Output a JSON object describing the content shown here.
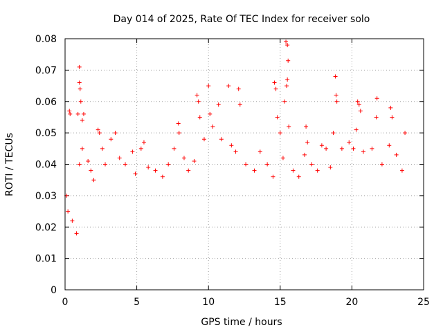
{
  "chart_data": {
    "type": "scatter",
    "title": "Day 014 of 2025, Rate Of TEC Index for receiver solo",
    "xlabel": "GPS time / hours",
    "ylabel": "ROTI / TECUs",
    "xlim": [
      0,
      25
    ],
    "ylim": [
      0,
      0.08
    ],
    "x_ticks": [
      0,
      5,
      10,
      15,
      20,
      25
    ],
    "x_tick_labels": [
      "0",
      "5",
      "10",
      "15",
      "20",
      "25"
    ],
    "y_ticks": [
      0,
      0.01,
      0.02,
      0.03,
      0.04,
      0.05,
      0.06,
      0.07,
      0.08
    ],
    "y_tick_labels": [
      "0",
      "0.01",
      "0.02",
      "0.03",
      "0.04",
      "0.05",
      "0.06",
      "0.07",
      "0.08"
    ],
    "grid": true,
    "marker": "+",
    "color": "#ff0000",
    "series": [
      {
        "name": "ROTI",
        "points": [
          [
            0.1,
            0.03
          ],
          [
            0.2,
            0.025
          ],
          [
            0.3,
            0.057
          ],
          [
            0.35,
            0.056
          ],
          [
            0.5,
            0.022
          ],
          [
            0.8,
            0.018
          ],
          [
            0.9,
            0.056
          ],
          [
            1.0,
            0.071
          ],
          [
            1.0,
            0.066
          ],
          [
            1.05,
            0.064
          ],
          [
            1.1,
            0.06
          ],
          [
            1.2,
            0.054
          ],
          [
            1.3,
            0.056
          ],
          [
            1.2,
            0.045
          ],
          [
            1.0,
            0.04
          ],
          [
            1.6,
            0.041
          ],
          [
            1.8,
            0.038
          ],
          [
            2.0,
            0.035
          ],
          [
            2.3,
            0.051
          ],
          [
            2.4,
            0.05
          ],
          [
            2.6,
            0.045
          ],
          [
            2.8,
            0.04
          ],
          [
            3.2,
            0.048
          ],
          [
            3.5,
            0.05
          ],
          [
            3.8,
            0.042
          ],
          [
            4.2,
            0.04
          ],
          [
            4.7,
            0.044
          ],
          [
            4.9,
            0.037
          ],
          [
            5.3,
            0.045
          ],
          [
            5.5,
            0.047
          ],
          [
            5.8,
            0.039
          ],
          [
            6.3,
            0.038
          ],
          [
            6.8,
            0.036
          ],
          [
            7.2,
            0.04
          ],
          [
            7.6,
            0.045
          ],
          [
            7.9,
            0.053
          ],
          [
            7.95,
            0.05
          ],
          [
            8.3,
            0.042
          ],
          [
            8.6,
            0.038
          ],
          [
            9.0,
            0.041
          ],
          [
            9.2,
            0.062
          ],
          [
            9.3,
            0.06
          ],
          [
            9.4,
            0.055
          ],
          [
            9.7,
            0.048
          ],
          [
            10.0,
            0.065
          ],
          [
            10.1,
            0.056
          ],
          [
            10.3,
            0.052
          ],
          [
            10.7,
            0.059
          ],
          [
            10.9,
            0.048
          ],
          [
            11.4,
            0.065
          ],
          [
            11.6,
            0.046
          ],
          [
            11.9,
            0.044
          ],
          [
            12.1,
            0.064
          ],
          [
            12.2,
            0.059
          ],
          [
            12.6,
            0.04
          ],
          [
            13.2,
            0.038
          ],
          [
            13.6,
            0.044
          ],
          [
            14.1,
            0.04
          ],
          [
            14.5,
            0.036
          ],
          [
            14.6,
            0.066
          ],
          [
            14.7,
            0.064
          ],
          [
            14.8,
            0.055
          ],
          [
            15.0,
            0.05
          ],
          [
            15.2,
            0.042
          ],
          [
            15.4,
            0.079
          ],
          [
            15.5,
            0.078
          ],
          [
            15.55,
            0.073
          ],
          [
            15.5,
            0.067
          ],
          [
            15.45,
            0.065
          ],
          [
            15.3,
            0.06
          ],
          [
            15.6,
            0.052
          ],
          [
            15.9,
            0.038
          ],
          [
            16.3,
            0.036
          ],
          [
            16.7,
            0.043
          ],
          [
            16.8,
            0.052
          ],
          [
            16.9,
            0.047
          ],
          [
            17.2,
            0.04
          ],
          [
            17.6,
            0.038
          ],
          [
            17.9,
            0.046
          ],
          [
            18.2,
            0.045
          ],
          [
            18.5,
            0.039
          ],
          [
            18.7,
            0.05
          ],
          [
            18.85,
            0.068
          ],
          [
            18.9,
            0.062
          ],
          [
            18.95,
            0.06
          ],
          [
            19.3,
            0.045
          ],
          [
            19.8,
            0.047
          ],
          [
            20.1,
            0.045
          ],
          [
            20.3,
            0.051
          ],
          [
            20.4,
            0.06
          ],
          [
            20.5,
            0.059
          ],
          [
            20.6,
            0.057
          ],
          [
            20.8,
            0.044
          ],
          [
            21.4,
            0.045
          ],
          [
            21.7,
            0.055
          ],
          [
            21.75,
            0.061
          ],
          [
            22.1,
            0.04
          ],
          [
            22.6,
            0.046
          ],
          [
            22.7,
            0.058
          ],
          [
            22.8,
            0.055
          ],
          [
            23.1,
            0.043
          ],
          [
            23.5,
            0.038
          ],
          [
            23.7,
            0.05
          ]
        ]
      }
    ]
  }
}
